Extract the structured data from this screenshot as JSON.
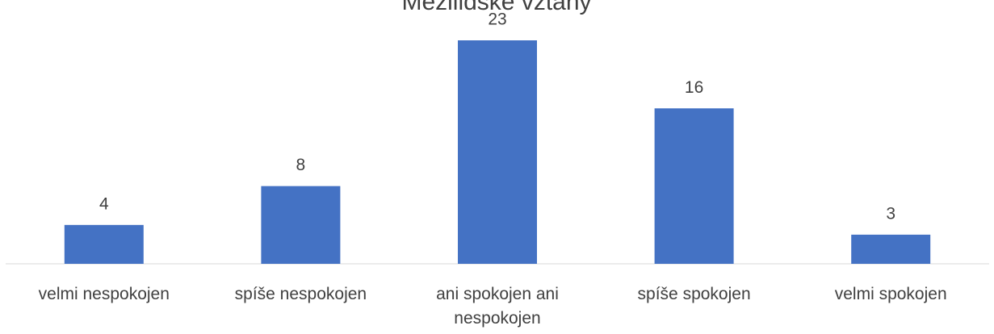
{
  "chart_data": {
    "type": "bar",
    "title": "Mezilidské vztahy",
    "categories": [
      "velmi nespokojen",
      "spíše nespokojen",
      "ani spokojen ani nespokojen",
      "spíše spokojen",
      "velmi spokojen"
    ],
    "values": [
      4,
      8,
      23,
      16,
      3
    ],
    "color": "#4472c4"
  }
}
